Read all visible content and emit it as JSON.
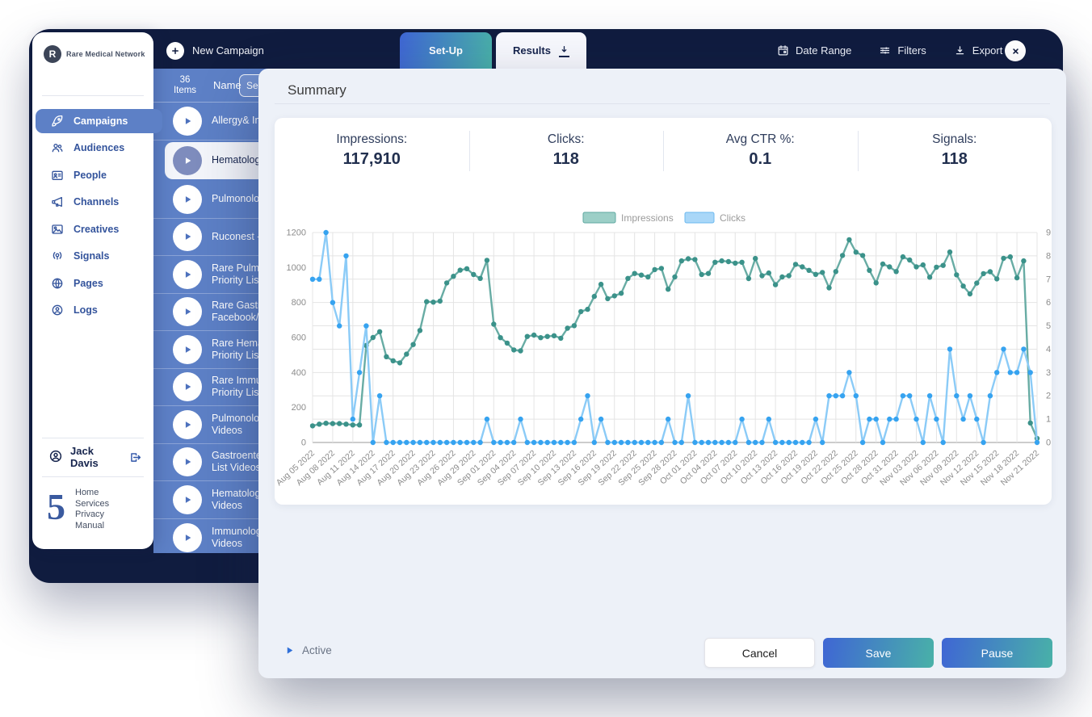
{
  "colors": {
    "navy": "#101c3f",
    "panel_blue": "#5d80c6",
    "gradient_start": "#3f66d4",
    "gradient_end": "#49b1a8",
    "impressions_line": "#68aca4",
    "impressions_dot": "#3b928a",
    "clicks_line": "#8bcbf7",
    "clicks_dot": "#36a3f0",
    "modal_bg": "#edf1f8"
  },
  "app": {
    "logo_text": "Rare Medical Network",
    "topbar": {
      "new_campaign": "New Campaign",
      "tabs": [
        {
          "label": "Set-Up",
          "active": true
        },
        {
          "label": "Results",
          "active": false,
          "icon": "download-icon"
        }
      ],
      "actions": [
        {
          "label": "Date Range",
          "icon": "calendar-icon"
        },
        {
          "label": "Filters",
          "icon": "filters-icon"
        },
        {
          "label": "Export",
          "icon": "download-icon"
        }
      ]
    },
    "sidebar": {
      "items": [
        {
          "label": "Campaigns",
          "icon": "rocket-icon",
          "active": true
        },
        {
          "label": "Audiences",
          "icon": "users-icon",
          "active": false
        },
        {
          "label": "People",
          "icon": "card-icon",
          "active": false
        },
        {
          "label": "Channels",
          "icon": "megaphone-icon",
          "active": false
        },
        {
          "label": "Creatives",
          "icon": "image-icon",
          "active": false
        },
        {
          "label": "Signals",
          "icon": "signal-icon",
          "active": false
        },
        {
          "label": "Pages",
          "icon": "globe-icon",
          "active": false
        },
        {
          "label": "Logs",
          "icon": "user-circle-icon",
          "active": false
        }
      ],
      "user": {
        "name": "Jack Davis"
      },
      "footer_logo": "5",
      "footer_links": [
        "Home",
        "Services",
        "Privacy",
        "Manual"
      ]
    },
    "list": {
      "count_line1": "36",
      "count_line2": "Items",
      "name_header": "Name",
      "search_value": "Se",
      "rows": [
        {
          "line1": "Allergy& Imm",
          "line2": "",
          "selected": false
        },
        {
          "line1": "Hematology",
          "line2": "",
          "selected": true
        },
        {
          "line1": "Pulmonolog",
          "line2": "",
          "selected": false
        },
        {
          "line1": "Ruconest - H",
          "line2": "",
          "selected": false
        },
        {
          "line1": "Rare Pulmon",
          "line2": "Priority List",
          "selected": false
        },
        {
          "line1": "Rare Gastro",
          "line2": "Facebook/In",
          "selected": false
        },
        {
          "line1": "Rare Hemat",
          "line2": "Priority List",
          "selected": false
        },
        {
          "line1": "Rare Immun",
          "line2": "Priority List",
          "selected": false
        },
        {
          "line1": "Pulmonolog",
          "line2": "Videos",
          "selected": false
        },
        {
          "line1": "Gastroenter",
          "line2": "List Videos",
          "selected": false
        },
        {
          "line1": "Hematology",
          "line2": "Videos",
          "selected": false
        },
        {
          "line1": "Immunology",
          "line2": "Videos",
          "selected": false
        }
      ]
    }
  },
  "modal": {
    "title": "Summary",
    "stats": [
      {
        "label": "Impressions:",
        "value": "117,910"
      },
      {
        "label": "Clicks:",
        "value": "118"
      },
      {
        "label": "Avg CTR %:",
        "value": "0.1"
      },
      {
        "label": "Signals:",
        "value": "118"
      }
    ],
    "footer": {
      "status_label": "Active",
      "cancel": "Cancel",
      "save": "Save",
      "pause": "Pause"
    }
  },
  "chart_data": {
    "type": "line",
    "title": "",
    "legend_position": "top-center",
    "grid": true,
    "x_is_daily": true,
    "x_start": "Aug 05 2022",
    "x_end": "Nov 21 2022",
    "x_tick_every_days": 3,
    "x_tick_labels": [
      "Aug 05 2022",
      "Aug 08 2022",
      "Aug 11 2022",
      "Aug 14 2022",
      "Aug 17 2022",
      "Aug 20 2022",
      "Aug 23 2022",
      "Aug 26 2022",
      "Aug 29 2022",
      "Sep 01 2022",
      "Sep 04 2022",
      "Sep 07 2022",
      "Sep 10 2022",
      "Sep 13 2022",
      "Sep 16 2022",
      "Sep 19 2022",
      "Sep 22 2022",
      "Sep 25 2022",
      "Sep 28 2022",
      "Oct 01 2022",
      "Oct 04 2022",
      "Oct 07 2022",
      "Oct 10 2022",
      "Oct 13 2022",
      "Oct 16 2022",
      "Oct 19 2022",
      "Oct 22 2022",
      "Oct 25 2022",
      "Oct 28 2022",
      "Oct 31 2022",
      "Nov 03 2022",
      "Nov 06 2022",
      "Nov 09 2022",
      "Nov 12 2022",
      "Nov 15 2022",
      "Nov 18 2022",
      "Nov 21 2022"
    ],
    "left_axis": {
      "min": 0,
      "max": 1200,
      "ticks": [
        0,
        200,
        400,
        600,
        800,
        1000,
        1200
      ]
    },
    "right_axis": {
      "min": 0,
      "max": 9,
      "ticks": [
        0,
        1,
        2,
        3,
        4,
        5,
        6,
        7,
        8,
        9
      ]
    },
    "series": [
      {
        "name": "Impressions",
        "axis": "left",
        "line_color": "#68aca4",
        "dot_color": "#3b928a",
        "swatch_fill": "#9ccfc7",
        "swatch_border": "#5fa8a0",
        "values": [
          95,
          105,
          110,
          108,
          108,
          105,
          100,
          100,
          555,
          600,
          633,
          490,
          467,
          455,
          505,
          560,
          640,
          805,
          802,
          808,
          912,
          950,
          985,
          993,
          960,
          938,
          1041,
          676,
          599,
          568,
          529,
          524,
          606,
          614,
          599,
          606,
          610,
          596,
          653,
          668,
          748,
          761,
          835,
          904,
          822,
          838,
          853,
          938,
          966,
          957,
          946,
          988,
          995,
          876,
          946,
          1038,
          1050,
          1046,
          960,
          966,
          1030,
          1038,
          1034,
          1025,
          1030,
          937,
          1052,
          953,
          969,
          902,
          946,
          953,
          1018,
          1004,
          984,
          961,
          972,
          884,
          977,
          1069,
          1159,
          1088,
          1069,
          984,
          912,
          1020,
          1004,
          977,
          1061,
          1043,
          1004,
          1015,
          945,
          1002,
          1012,
          1089,
          958,
          894,
          849,
          911,
          965,
          976,
          935,
          1053,
          1061,
          941,
          1038,
          111,
          23
        ]
      },
      {
        "name": "Clicks",
        "axis": "right",
        "line_color": "#8bcbf7",
        "dot_color": "#36a3f0",
        "swatch_fill": "#a9d7f8",
        "swatch_border": "#6cb8ef",
        "values": [
          7,
          7,
          9,
          6,
          5,
          8,
          1,
          3,
          5,
          0,
          2,
          0,
          0,
          0,
          0,
          0,
          0,
          0,
          0,
          0,
          0,
          0,
          0,
          0,
          0,
          0,
          1,
          0,
          0,
          0,
          0,
          1,
          0,
          0,
          0,
          0,
          0,
          0,
          0,
          0,
          1,
          2,
          0,
          1,
          0,
          0,
          0,
          0,
          0,
          0,
          0,
          0,
          0,
          1,
          0,
          0,
          2,
          0,
          0,
          0,
          0,
          0,
          0,
          0,
          1,
          0,
          0,
          0,
          1,
          0,
          0,
          0,
          0,
          0,
          0,
          1,
          0,
          2,
          2,
          2,
          3,
          2,
          0,
          1,
          1,
          0,
          1,
          1,
          2,
          2,
          1,
          0,
          2,
          1,
          0,
          4,
          2,
          1,
          2,
          1,
          0,
          2,
          3,
          4,
          3,
          3,
          4,
          3,
          0
        ]
      }
    ]
  }
}
